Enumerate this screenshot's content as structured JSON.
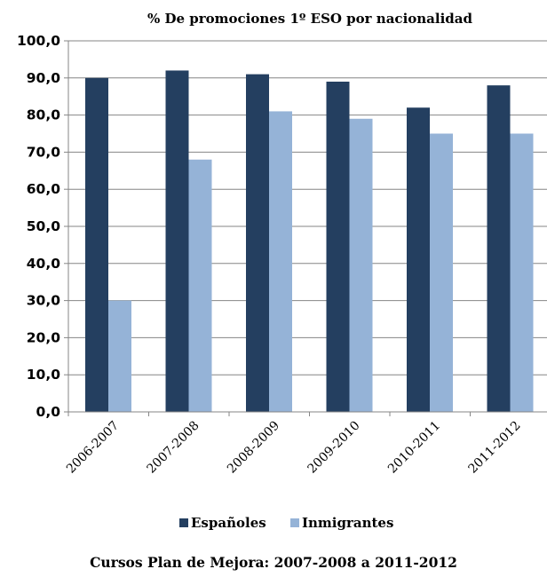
{
  "chart_data": {
    "type": "bar",
    "title": "% De promociones 1º ESO por nacionalidad",
    "categories": [
      "2006-2007",
      "2007-2008",
      "2008-2009",
      "2009-2010",
      "2010-2011",
      "2011-2012"
    ],
    "series": [
      {
        "name": "Españoles",
        "values": [
          90,
          92,
          91,
          89,
          82,
          88
        ],
        "color": "#243f60"
      },
      {
        "name": "Inmigrantes",
        "values": [
          30,
          68,
          81,
          79,
          75,
          75
        ],
        "color": "#95b3d7"
      }
    ],
    "ylim": [
      0,
      100
    ],
    "yticks": [
      "0,0",
      "10,0",
      "20,0",
      "30,0",
      "40,0",
      "50,0",
      "60,0",
      "70,0",
      "80,0",
      "90,0",
      "100,0"
    ],
    "grid": true,
    "legend_position": "bottom",
    "caption": "Cursos Plan de Mejora: 2007-2008 a 2011-2012"
  }
}
